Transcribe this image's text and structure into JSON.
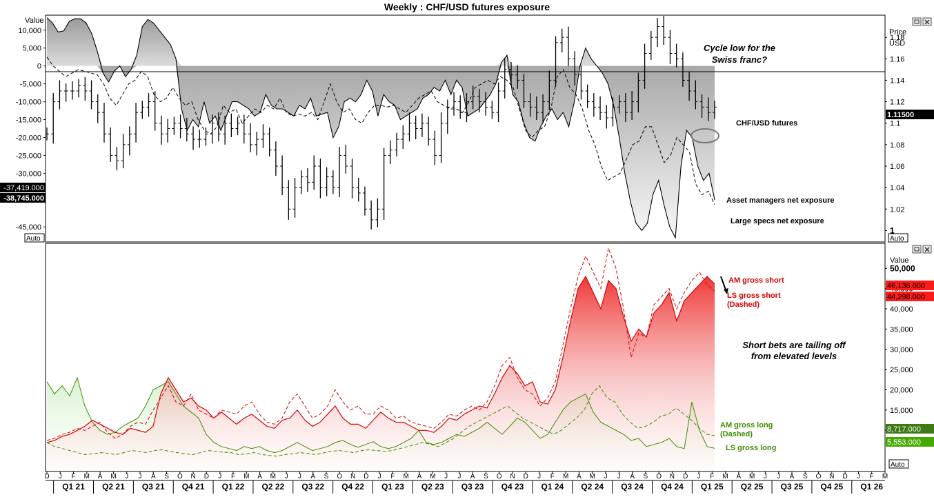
{
  "title": "Weekly : CHF/USD futures exposure",
  "colors": {
    "red": "#d40000",
    "green": "#3c8c00",
    "black": "#000000",
    "price_tag": "#000000",
    "am_short_tag": "#ff0000",
    "ls_short_tag": "#ff0000",
    "am_long_tag": "#3e7a16",
    "ls_long_tag": "#44aa00"
  },
  "top_panel": {
    "left_axis_title": "Value",
    "right_axis_title_1": "Price",
    "right_axis_title_2": "USD",
    "auto_left": "Auto",
    "auto_right": "Auto",
    "tag_asset_managers": "-37,419.000",
    "tag_large_specs": "-38,745.000",
    "tag_price": "1.11500",
    "annotation_1": "Cycle low for the",
    "annotation_2": "Swiss franc?",
    "label_price_series": "CHF/USD futures",
    "label_asset_managers": "Asset managers net exposure",
    "label_large_specs": "Large specs net exposure"
  },
  "bottom_panel": {
    "right_axis_title": "Value",
    "auto_right": "Auto",
    "tag_am_gross_short": "46,136.000",
    "tag_ls_gross_short": "44,298.000",
    "tag_am_gross_long": "8,717.000",
    "tag_ls_gross_long": "5,553.000",
    "label_am_gross_short": "AM gross short",
    "label_ls_gross_short_1": "LS gross short",
    "label_ls_gross_short_2": "(Dashed)",
    "annotation_1": "Short bets are tailing off",
    "annotation_2": "from elevated levels",
    "label_am_gross_long_1": "AM gross long",
    "label_am_gross_long_2": "(Dashed)",
    "label_ls_gross_long": "LS gross long"
  },
  "chart_data": [
    {
      "type": "line",
      "title": "Weekly : CHF/USD futures exposure",
      "y_left_ticks": [
        "10,000",
        "5,000",
        "0",
        "-5,000",
        "-10,000",
        "-15,000",
        "-20,000",
        "-25,000",
        "-30,000",
        "-45,000"
      ],
      "y_right_ticks": [
        "1.18",
        "1.16",
        "1.14",
        "1.12",
        "1.1",
        "1.08",
        "1.06",
        "1.04",
        "1.02",
        "1"
      ],
      "ylim_left": [
        -49000,
        14000
      ],
      "ylim_right": [
        0.99,
        1.2
      ],
      "series": [
        {
          "name": "Asset managers net exposure",
          "style": "solid, filled to zero",
          "values": [
            13500,
            12000,
            9500,
            9800,
            12500,
            13200,
            13200,
            12000,
            9000,
            4000,
            -2000,
            -4500,
            -1500,
            0,
            -3000,
            -1000,
            3000,
            11000,
            13000,
            12000,
            10000,
            8000,
            6000,
            2000,
            -12000,
            -18000,
            -15000,
            -17000,
            -10000,
            -16000,
            -14000,
            -18000,
            -14000,
            -10000,
            -10000,
            -11000,
            -12000,
            -14000,
            -13000,
            -8000,
            -11000,
            -12000,
            -12000,
            -13000,
            -14000,
            -11000,
            -12000,
            -9000,
            -14000,
            -13500,
            -13000,
            -20000,
            -17000,
            -10000,
            -9000,
            -10000,
            -8000,
            -4000,
            -7000,
            -14000,
            -8000,
            -10000,
            -11000,
            -15000,
            -14000,
            -13000,
            -12000,
            -9000,
            -8000,
            -6000,
            -7000,
            -4000,
            -8000,
            -4000,
            -6000,
            -14000,
            -13000,
            -12000,
            -10000,
            -8000,
            -5000,
            1000,
            3000,
            -8000,
            -10000,
            -16000,
            -20000,
            -21000,
            -17000,
            -14000,
            -12000,
            -15000,
            -13000,
            -17000,
            -10000,
            0,
            5000,
            2000,
            0,
            -2000,
            -5000,
            -11000,
            -20000,
            -30000,
            -38000,
            -44000,
            -46000,
            -44000,
            -36000,
            -32000,
            -39000,
            -45000,
            -48000,
            -28000,
            -18000,
            -20000,
            -28000,
            -32000,
            -30000,
            -37419
          ]
        },
        {
          "name": "Large specs net exposure",
          "style": "dashed",
          "values": [
            2500,
            0,
            -1500,
            -3000,
            -2000,
            -1000,
            -1500,
            -2000,
            -2500,
            -5000,
            -9000,
            -11000,
            -8000,
            -5000,
            -4000,
            -1500,
            -3000,
            -8000,
            -10000,
            -9000,
            -6000,
            -9000,
            -11000,
            -10000,
            -15000,
            -18000,
            -19000,
            -17000,
            -11000,
            -13000,
            -12000,
            -16000,
            -14000,
            -12000,
            -13000,
            -11000,
            -12000,
            -9000,
            -13000,
            -14000,
            -13500,
            -14000,
            -13000,
            -15000,
            -10000,
            -5000,
            -10000,
            -13000,
            -12000,
            -15000,
            -16000,
            -13000,
            -11000,
            -11000,
            -11500,
            -11000,
            -12000,
            -13000,
            -11000,
            -9000,
            -8000,
            -7000,
            -10000,
            -11000,
            -12000,
            -12000,
            -13000,
            -10000,
            -6000,
            -5000,
            -4000,
            -5000,
            -3000,
            -4000,
            -6000,
            -12000,
            -18000,
            -20000,
            -18000,
            -17000,
            -12000,
            -3000,
            -1000,
            -6000,
            -8000,
            -12000,
            -18000,
            -22000,
            -28000,
            -32000,
            -31000,
            -30000,
            -26000,
            -22000,
            -21000,
            -17000,
            -17000,
            -22000,
            -27000,
            -25000,
            -20000,
            -22000,
            -24000,
            -33000,
            -36000,
            -35000,
            -38745
          ]
        },
        {
          "name": "CHF/USD futures",
          "style": "OHLC bars",
          "values": [
            1.09,
            1.12,
            1.13,
            1.13,
            1.13,
            1.135,
            1.13,
            1.12,
            1.11,
            1.09,
            1.07,
            1.065,
            1.08,
            1.09,
            1.11,
            1.115,
            1.12,
            1.1,
            1.09,
            1.095,
            1.1,
            1.095,
            1.09,
            1.085,
            1.085,
            1.09,
            1.1,
            1.09,
            1.1,
            1.095,
            1.1,
            1.09,
            1.08,
            1.085,
            1.09,
            1.075,
            1.06,
            1.04,
            1.02,
            1.04,
            1.05,
            1.045,
            1.06,
            1.04,
            1.05,
            1.04,
            1.07,
            1.06,
            1.04,
            1.035,
            1.02,
            1.01,
            1.02,
            1.07,
            1.075,
            1.085,
            1.09,
            1.1,
            1.095,
            1.1,
            1.085,
            1.07,
            1.1,
            1.115,
            1.12,
            1.11,
            1.12,
            1.125,
            1.12,
            1.115,
            1.11,
            1.13,
            1.15,
            1.145,
            1.14,
            1.12,
            1.115,
            1.11,
            1.12,
            1.14,
            1.175,
            1.18,
            1.16,
            1.145,
            1.13,
            1.12,
            1.115,
            1.11,
            1.105,
            1.115,
            1.12,
            1.11,
            1.12,
            1.14,
            1.165,
            1.18,
            1.19,
            1.18,
            1.165,
            1.16,
            1.14,
            1.13,
            1.12,
            1.115,
            1.11,
            1.115
          ]
        }
      ]
    },
    {
      "type": "area",
      "y_right_ticks": [
        "50,000",
        "45,000",
        "40,000",
        "35,000",
        "30,000",
        "25,000",
        "20,000",
        "15,000",
        "10,000"
      ],
      "ylim": [
        0,
        56000
      ],
      "x_month_ticks": [
        "D",
        "J",
        "F",
        "M",
        "A",
        "M",
        "J",
        "J",
        "A",
        "S",
        "O",
        "N",
        "D",
        "J",
        "F",
        "M",
        "A",
        "M",
        "J",
        "J",
        "A",
        "S",
        "O",
        "N",
        "D",
        "J",
        "F",
        "M",
        "A",
        "M",
        "J",
        "J",
        "A",
        "S",
        "O",
        "N",
        "D",
        "J",
        "F",
        "M",
        "A",
        "M",
        "J",
        "J",
        "A",
        "S",
        "O",
        "N",
        "D",
        "J",
        "F",
        "M",
        "A",
        "M",
        "J",
        "J",
        "A",
        "S",
        "O",
        "N",
        "D",
        "J",
        "F",
        "M"
      ],
      "x_quarter_ticks": [
        "Q1 21",
        "Q2 21",
        "Q3 21",
        "Q4 21",
        "Q1 22",
        "Q2 22",
        "Q3 22",
        "Q4 22",
        "Q1 23",
        "Q2 23",
        "Q3 23",
        "Q4 23",
        "Q1 24",
        "Q2 24",
        "Q3 24",
        "Q4 24",
        "Q1 25",
        "Q2 25",
        "Q3 25",
        "Q4 25",
        "Q1 26"
      ],
      "series": [
        {
          "name": "AM gross short",
          "style": "solid, filled",
          "values": [
            7000,
            7500,
            8500,
            9000,
            10000,
            11000,
            12500,
            11500,
            10500,
            9500,
            9000,
            10500,
            10000,
            9500,
            11000,
            19000,
            23000,
            20000,
            17000,
            18000,
            16000,
            15000,
            13000,
            14500,
            13000,
            11500,
            13000,
            14000,
            12500,
            11000,
            10500,
            12500,
            13000,
            15000,
            12500,
            11000,
            12000,
            14000,
            16000,
            13000,
            11500,
            11500,
            10500,
            12500,
            14500,
            13000,
            12000,
            12000,
            11000,
            10000,
            10000,
            9500,
            11000,
            13000,
            12500,
            14000,
            15000,
            16000,
            15500,
            19000,
            23000,
            26000,
            24000,
            21000,
            22000,
            17000,
            16500,
            20000,
            28000,
            37000,
            45000,
            48000,
            44000,
            40000,
            47000,
            45000,
            38000,
            32000,
            35000,
            33000,
            39000,
            41000,
            44000,
            37000,
            42000,
            44000,
            46000,
            48000,
            46136
          ]
        },
        {
          "name": "LS gross short",
          "style": "dashed",
          "values": [
            7500,
            8000,
            9000,
            9500,
            10500,
            10000,
            11000,
            12000,
            9500,
            8000,
            9000,
            11000,
            12000,
            11500,
            15000,
            18000,
            21000,
            17000,
            16000,
            19000,
            15000,
            14000,
            13000,
            15000,
            14500,
            14000,
            16000,
            17000,
            14000,
            12000,
            11500,
            13000,
            17000,
            19000,
            16000,
            13000,
            14000,
            16000,
            20000,
            17000,
            15000,
            16000,
            14000,
            14000,
            16000,
            15000,
            13000,
            13500,
            12000,
            11500,
            11000,
            10500,
            12000,
            14000,
            13500,
            15000,
            16000,
            15000,
            17000,
            21000,
            26000,
            28000,
            23000,
            20000,
            19000,
            16000,
            18000,
            22000,
            31000,
            40000,
            48000,
            53000,
            49000,
            45000,
            55000,
            50000,
            40000,
            28000,
            34000,
            33000,
            41000,
            43000,
            45000,
            40000,
            44000,
            47000,
            49000,
            46000,
            44298
          ]
        },
        {
          "name": "AM gross long",
          "style": "dashed",
          "values": [
            7000,
            6000,
            5500,
            5000,
            4500,
            4000,
            4200,
            4500,
            4300,
            4000,
            4500,
            5000,
            4800,
            4500,
            5000,
            5200,
            4800,
            4500,
            4200,
            4000,
            4500,
            5000,
            4800,
            4600,
            4500,
            4000,
            4200,
            4500,
            4000,
            3800,
            3600,
            4000,
            4200,
            4500,
            4300,
            4000,
            4400,
            4800,
            5000,
            4800,
            4500,
            5000,
            5200,
            5000,
            4800,
            5000,
            5500,
            6000,
            6500,
            7000,
            6500,
            6000,
            7000,
            8000,
            9500,
            11000,
            12000,
            13000,
            14000,
            15000,
            16000,
            14500,
            13000,
            12000,
            11000,
            10000,
            9000,
            10000,
            11500,
            13000,
            15000,
            19000,
            21000,
            18000,
            17000,
            14000,
            12000,
            10500,
            11000,
            12000,
            13500,
            14000,
            15500,
            14000,
            12500,
            10500,
            9000,
            8717
          ]
        },
        {
          "name": "LS gross long",
          "style": "solid",
          "values": [
            22000,
            19000,
            21000,
            18500,
            23000,
            16000,
            12000,
            10000,
            9000,
            9500,
            11000,
            12000,
            13000,
            16000,
            20000,
            21000,
            22000,
            19000,
            16000,
            14500,
            13000,
            9000,
            7000,
            6000,
            5500,
            5000,
            6000,
            5500,
            6000,
            5000,
            4500,
            5000,
            6000,
            7000,
            6000,
            5000,
            5500,
            6000,
            7000,
            7500,
            6500,
            5800,
            6500,
            7200,
            6000,
            5500,
            6000,
            7000,
            8000,
            10000,
            7000,
            6500,
            7000,
            8000,
            9000,
            8500,
            9500,
            10500,
            12000,
            10500,
            9000,
            11000,
            13000,
            12000,
            10000,
            8000,
            9000,
            12000,
            15000,
            17000,
            18000,
            19000,
            14500,
            12000,
            11000,
            10000,
            9000,
            7500,
            8000,
            6000,
            6500,
            7000,
            8000,
            6000,
            5500,
            17000,
            10000,
            6000,
            5553
          ]
        }
      ]
    }
  ]
}
